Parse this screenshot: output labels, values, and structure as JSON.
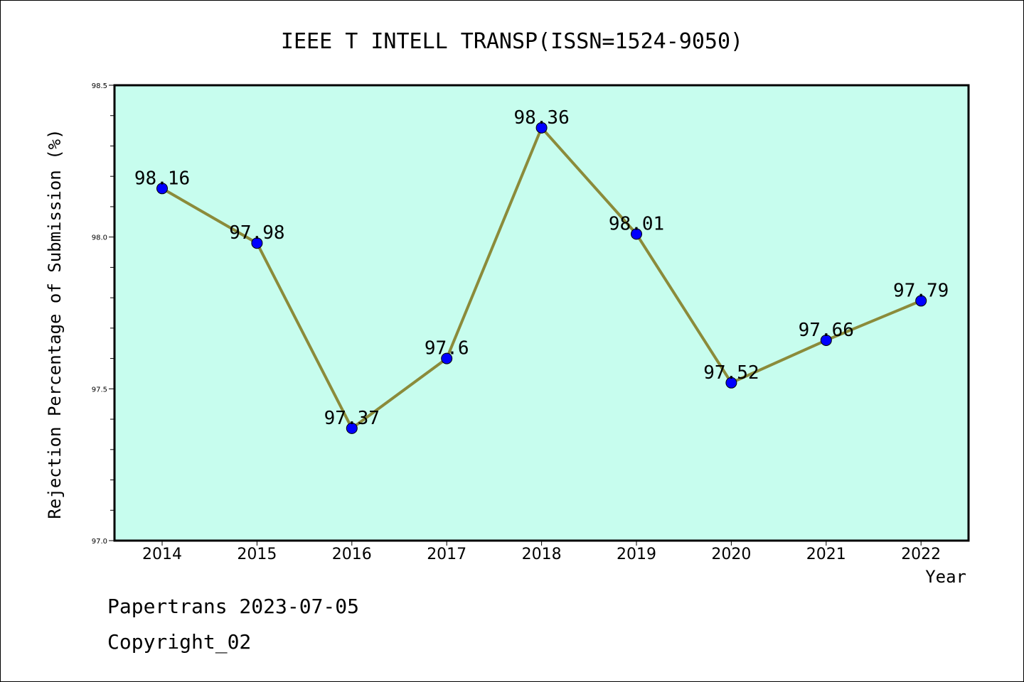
{
  "chart_data": {
    "type": "line",
    "title": "IEEE T INTELL TRANSP(ISSN=1524-9050)",
    "xlabel": "Year",
    "ylabel": "Rejection Percentage of Submission (%)",
    "categories": [
      "2014",
      "2015",
      "2016",
      "2017",
      "2018",
      "2019",
      "2020",
      "2021",
      "2022"
    ],
    "values": [
      98.16,
      97.98,
      97.37,
      97.6,
      98.36,
      98.01,
      97.52,
      97.66,
      97.79
    ],
    "data_labels": [
      "98.16",
      "97.98",
      "97.37",
      "97.6",
      "98.36",
      "98.01",
      "97.52",
      "97.66",
      "97.79"
    ],
    "ylim": [
      97.0,
      98.5
    ],
    "yticks": [
      "97.0",
      "97.5",
      "98.0",
      "98.5"
    ],
    "grid": false,
    "colors": {
      "plot_background": "#c7fdee",
      "line": "#8b8b3a",
      "marker": "#0000ff"
    }
  },
  "footer": {
    "line1": "Papertrans 2023-07-05",
    "line2": "Copyright_02"
  }
}
